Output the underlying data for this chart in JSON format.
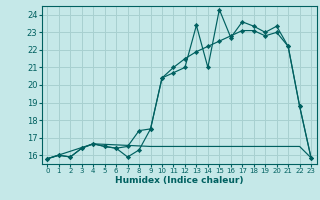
{
  "xlabel": "Humidex (Indice chaleur)",
  "bg_color": "#c5e8e8",
  "grid_color": "#a8d0d0",
  "line_color": "#006060",
  "xlim": [
    -0.5,
    23.5
  ],
  "ylim": [
    15.5,
    24.5
  ],
  "xticks": [
    0,
    1,
    2,
    3,
    4,
    5,
    6,
    7,
    8,
    9,
    10,
    11,
    12,
    13,
    14,
    15,
    16,
    17,
    18,
    19,
    20,
    21,
    22,
    23
  ],
  "yticks": [
    16,
    17,
    18,
    19,
    20,
    21,
    22,
    23,
    24
  ],
  "series1_x": [
    0,
    1,
    2,
    3,
    4,
    5,
    6,
    7,
    8,
    9,
    10,
    11,
    12,
    13,
    14,
    15,
    16,
    17,
    18,
    19,
    20,
    21,
    22,
    23
  ],
  "series1_y": [
    15.8,
    16.0,
    15.9,
    16.4,
    16.65,
    16.5,
    16.4,
    15.9,
    16.3,
    17.5,
    20.4,
    20.7,
    21.0,
    23.4,
    21.0,
    24.3,
    22.7,
    23.6,
    23.35,
    23.0,
    23.35,
    22.2,
    18.8,
    15.85
  ],
  "series2_x": [
    0,
    1,
    2,
    3,
    4,
    5,
    6,
    7,
    8,
    9,
    10,
    11,
    12,
    13,
    14,
    15,
    16,
    17,
    18,
    19,
    20,
    21,
    22,
    23
  ],
  "series2_y": [
    15.8,
    16.0,
    15.9,
    16.4,
    16.65,
    16.5,
    16.4,
    16.5,
    17.4,
    17.5,
    20.4,
    21.0,
    21.5,
    21.9,
    22.2,
    22.5,
    22.8,
    23.1,
    23.1,
    22.8,
    23.0,
    22.2,
    18.8,
    15.85
  ],
  "series3_x": [
    0,
    4,
    9,
    10,
    15,
    16,
    17,
    18,
    19,
    20,
    21,
    22,
    23
  ],
  "series3_y": [
    15.8,
    16.65,
    16.5,
    16.5,
    16.5,
    16.5,
    16.5,
    16.5,
    16.5,
    16.5,
    16.5,
    16.5,
    15.85
  ]
}
